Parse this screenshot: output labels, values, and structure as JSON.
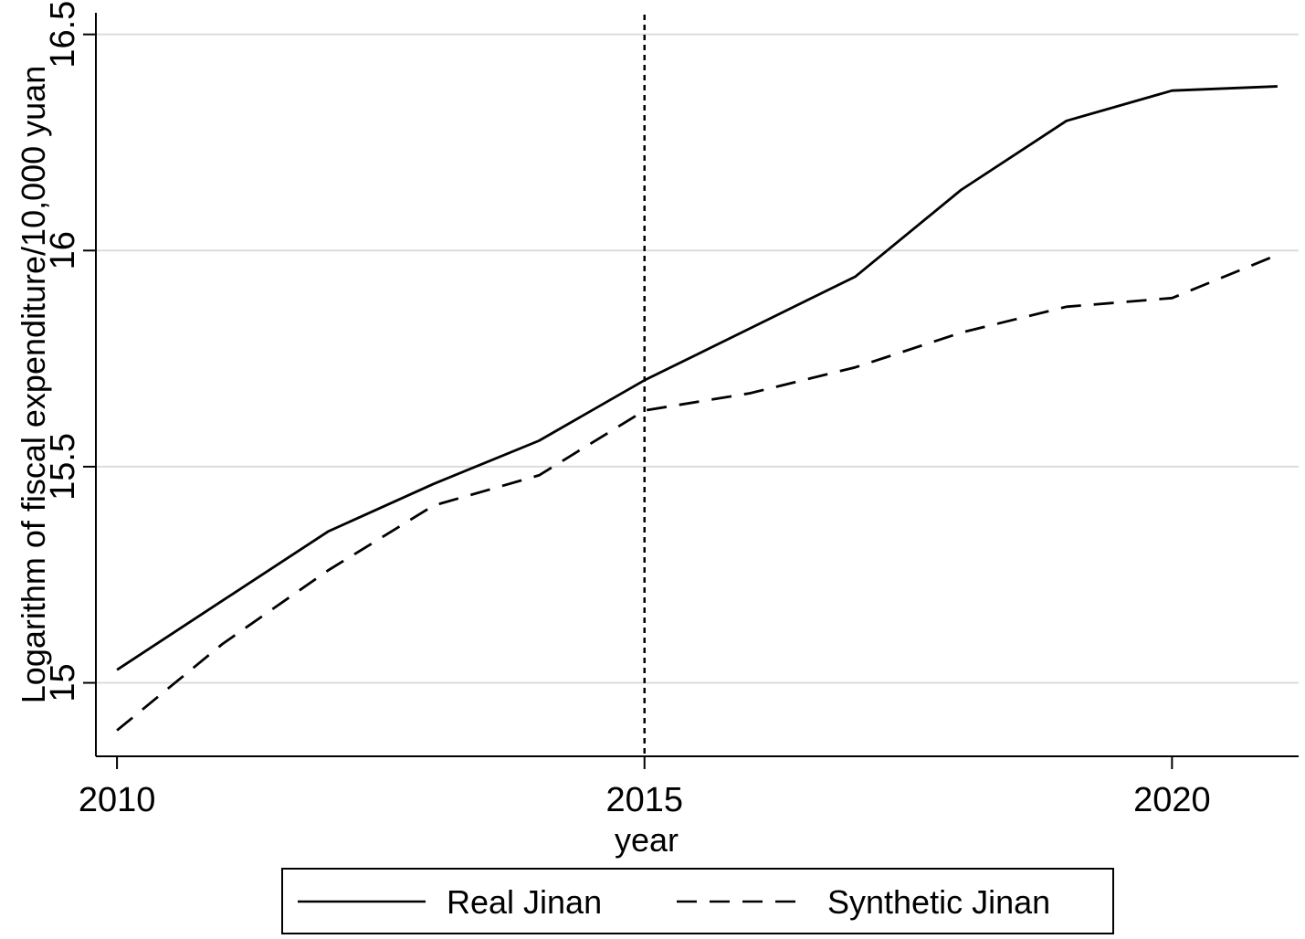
{
  "chart_data": {
    "type": "line",
    "xlabel": "year",
    "ylabel": "Logarithm of fiscal expenditure/10,000 yuan",
    "x": [
      2010,
      2011,
      2012,
      2013,
      2014,
      2015,
      2016,
      2017,
      2018,
      2019,
      2020,
      2021
    ],
    "xlim": [
      2009.8,
      2021.2
    ],
    "ylim": [
      14.83,
      16.55
    ],
    "x_ticks": [
      2010,
      2015,
      2020
    ],
    "x_tick_labels": [
      "2010",
      "2015",
      "2020"
    ],
    "y_ticks": [
      15,
      15.5,
      16,
      16.5
    ],
    "y_tick_labels": [
      "15",
      "15.5",
      "16",
      "16.5"
    ],
    "grid": "horizontal",
    "reference_line": {
      "x": 2015,
      "style": "dotted"
    },
    "legend_position": "bottom",
    "series": [
      {
        "name": "Real Jinan",
        "style": "solid",
        "color": "#000000",
        "values": [
          15.03,
          15.19,
          15.35,
          15.46,
          15.56,
          15.7,
          15.82,
          15.94,
          16.14,
          16.3,
          16.37,
          16.38
        ]
      },
      {
        "name": "Synthetic Jinan",
        "style": "dashed",
        "color": "#000000",
        "values": [
          14.89,
          15.09,
          15.26,
          15.41,
          15.48,
          15.63,
          15.67,
          15.73,
          15.81,
          15.87,
          15.89,
          15.99
        ]
      }
    ]
  }
}
